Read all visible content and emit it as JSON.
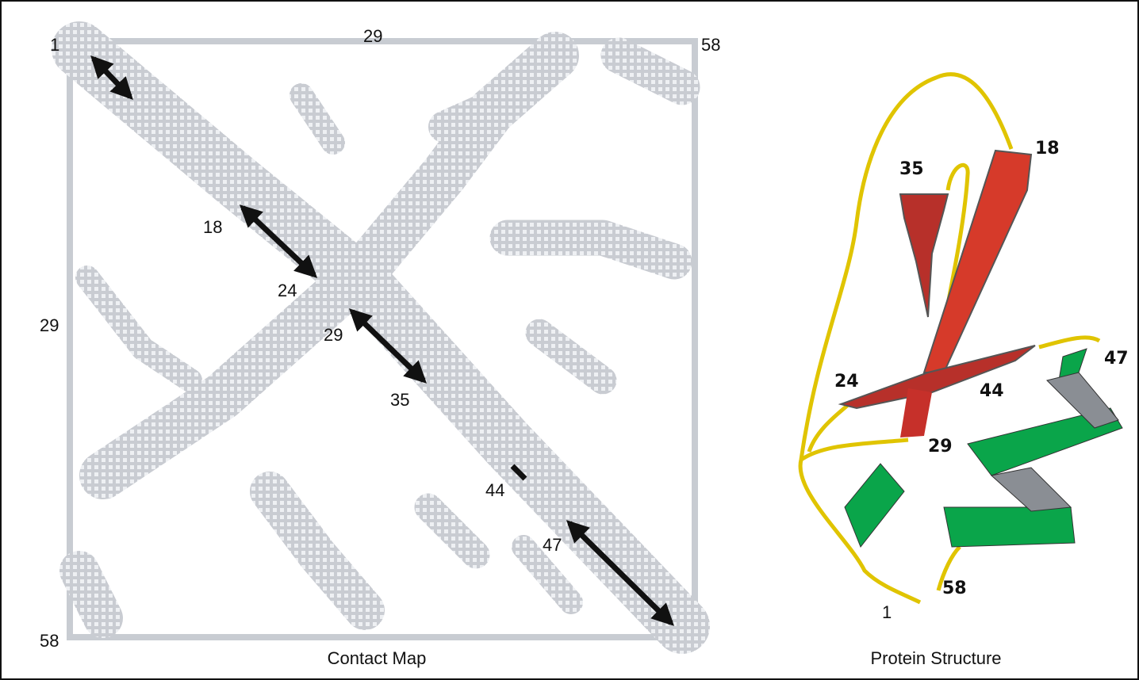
{
  "contact_map": {
    "axis_labels": {
      "top_left": "1",
      "top_mid": "29",
      "top_right": "58",
      "left_mid": "29",
      "bottom_left": "58"
    },
    "diagonal_labels": [
      "18",
      "24",
      "29",
      "35",
      "44",
      "47"
    ],
    "caption": "Contact Map"
  },
  "protein_structure": {
    "residue_labels": [
      "18",
      "35",
      "24",
      "44",
      "47",
      "29",
      "58",
      "1"
    ],
    "caption": "Protein Structure"
  }
}
